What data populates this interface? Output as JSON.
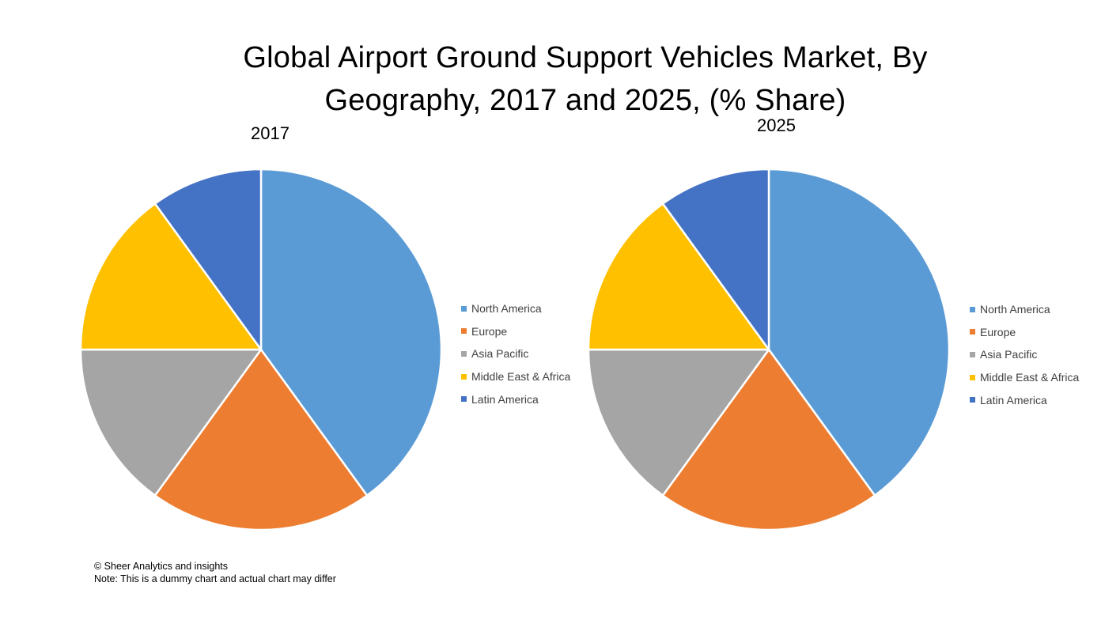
{
  "header": {
    "title_line1": "Global Airport Ground Support Vehicles Market, By",
    "title_line2": "Geography, 2017 and 2025, (% Share)"
  },
  "footer": {
    "copyright": "© Sheer Analytics and insights",
    "note": "Note: This is a dummy chart and actual chart may differ"
  },
  "colors": {
    "North America": "#5B9BD5",
    "Europe": "#ED7D31",
    "Asia Pacific": "#A5A5A5",
    "Middle East & Africa": "#FFC000",
    "Latin America": "#4472C4"
  },
  "chart_data": [
    {
      "type": "pie",
      "title": "2017",
      "legend_position": "right",
      "categories": [
        "North America",
        "Europe",
        "Asia Pacific",
        "Middle East & Africa",
        "Latin America"
      ],
      "values": [
        40,
        20,
        15,
        15,
        10
      ]
    },
    {
      "type": "pie",
      "title": "2025",
      "legend_position": "right",
      "categories": [
        "North America",
        "Europe",
        "Asia Pacific",
        "Middle East & Africa",
        "Latin America"
      ],
      "values": [
        40,
        20,
        15,
        15,
        10
      ]
    }
  ]
}
